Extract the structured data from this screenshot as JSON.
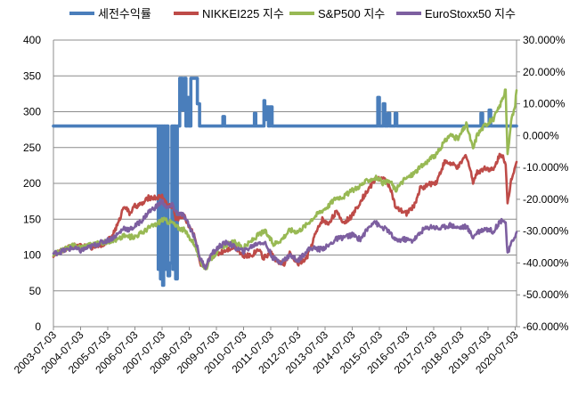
{
  "chart_data": {
    "type": "line",
    "title": "",
    "xlabel": "",
    "ylabel": "",
    "y2label": "",
    "x_categories": [
      "2003-07-03",
      "2004-07-03",
      "2005-07-03",
      "2006-07-03",
      "2007-07-03",
      "2008-07-03",
      "2009-07-03",
      "2010-07-03",
      "2011-07-03",
      "2012-07-03",
      "2013-07-03",
      "2014-07-03",
      "2015-07-03",
      "2016-07-03",
      "2017-07-03",
      "2018-07-03",
      "2019-07-03",
      "2020-07-03"
    ],
    "x_range": [
      2003.5,
      2020.55
    ],
    "ylim_left": [
      0,
      400
    ],
    "yticks_left": [
      "0",
      "50",
      "100",
      "150",
      "200",
      "250",
      "300",
      "350",
      "400"
    ],
    "ylim_right": [
      -0.6,
      0.3
    ],
    "yticks_right": [
      "-60.000%",
      "-50.000%",
      "-40.000%",
      "-30.000%",
      "-20.000%",
      "-10.000%",
      "0.000%",
      "10.000%",
      "20.000%",
      "30.000%"
    ],
    "grid": "horizontal",
    "legend_position": "top",
    "series": [
      {
        "name": "세전수익률",
        "axis": "right",
        "color": "#4a7ebb",
        "step": true,
        "points": [
          [
            2003.5,
            0.03
          ],
          [
            2007.35,
            0.03
          ],
          [
            2007.36,
            -0.42
          ],
          [
            2007.4,
            0.03
          ],
          [
            2007.44,
            -0.45
          ],
          [
            2007.48,
            0.03
          ],
          [
            2007.52,
            -0.47
          ],
          [
            2007.56,
            0.03
          ],
          [
            2007.62,
            -0.42
          ],
          [
            2007.66,
            0.03
          ],
          [
            2007.72,
            -0.44
          ],
          [
            2007.78,
            -0.4
          ],
          [
            2007.86,
            0.03
          ],
          [
            2007.9,
            -0.42
          ],
          [
            2007.94,
            0.03
          ],
          [
            2008.0,
            -0.45
          ],
          [
            2008.06,
            0.03
          ],
          [
            2008.15,
            0.18
          ],
          [
            2008.25,
            0.08
          ],
          [
            2008.32,
            0.18
          ],
          [
            2008.38,
            0.03
          ],
          [
            2008.42,
            0.12
          ],
          [
            2008.48,
            0.03
          ],
          [
            2008.56,
            0.18
          ],
          [
            2008.72,
            0.18
          ],
          [
            2008.8,
            0.1
          ],
          [
            2008.88,
            0.03
          ],
          [
            2009.7,
            0.03
          ],
          [
            2009.74,
            0.06
          ],
          [
            2009.8,
            0.03
          ],
          [
            2010.85,
            0.03
          ],
          [
            2010.9,
            0.07
          ],
          [
            2010.95,
            0.03
          ],
          [
            2011.2,
            0.03
          ],
          [
            2011.25,
            0.11
          ],
          [
            2011.28,
            0.05
          ],
          [
            2011.32,
            0.09
          ],
          [
            2011.42,
            0.03
          ],
          [
            2011.47,
            0.09
          ],
          [
            2011.55,
            0.03
          ],
          [
            2015.4,
            0.03
          ],
          [
            2015.44,
            0.12
          ],
          [
            2015.5,
            0.03
          ],
          [
            2015.6,
            0.03
          ],
          [
            2015.64,
            0.1
          ],
          [
            2015.7,
            0.03
          ],
          [
            2015.78,
            0.03
          ],
          [
            2015.82,
            0.07
          ],
          [
            2015.88,
            0.03
          ],
          [
            2016.05,
            0.03
          ],
          [
            2016.08,
            0.07
          ],
          [
            2016.14,
            0.03
          ],
          [
            2019.2,
            0.03
          ],
          [
            2019.24,
            0.07
          ],
          [
            2019.3,
            0.03
          ],
          [
            2019.5,
            0.03
          ],
          [
            2019.54,
            0.08
          ],
          [
            2019.6,
            0.03
          ],
          [
            2020.55,
            0.03
          ]
        ]
      },
      {
        "name": "NIKKEI225 지수",
        "axis": "left",
        "color": "#be4b48",
        "step": false,
        "points": [
          [
            2003.5,
            100
          ],
          [
            2003.9,
            107
          ],
          [
            2004.2,
            113
          ],
          [
            2004.5,
            112
          ],
          [
            2004.9,
            111
          ],
          [
            2005.3,
            115
          ],
          [
            2005.6,
            123
          ],
          [
            2005.9,
            145
          ],
          [
            2006.1,
            170
          ],
          [
            2006.3,
            158
          ],
          [
            2006.5,
            168
          ],
          [
            2006.8,
            172
          ],
          [
            2007.0,
            180
          ],
          [
            2007.3,
            180
          ],
          [
            2007.5,
            182
          ],
          [
            2007.7,
            170
          ],
          [
            2007.9,
            168
          ],
          [
            2008.0,
            150
          ],
          [
            2008.3,
            155
          ],
          [
            2008.5,
            140
          ],
          [
            2008.7,
            128
          ],
          [
            2008.9,
            88
          ],
          [
            2009.1,
            80
          ],
          [
            2009.3,
            98
          ],
          [
            2009.6,
            103
          ],
          [
            2009.9,
            108
          ],
          [
            2010.2,
            112
          ],
          [
            2010.5,
            98
          ],
          [
            2010.8,
            100
          ],
          [
            2011.1,
            110
          ],
          [
            2011.2,
            95
          ],
          [
            2011.5,
            103
          ],
          [
            2011.8,
            88
          ],
          [
            2012.0,
            88
          ],
          [
            2012.2,
            102
          ],
          [
            2012.5,
            88
          ],
          [
            2012.8,
            94
          ],
          [
            2012.95,
            108
          ],
          [
            2013.1,
            125
          ],
          [
            2013.4,
            150
          ],
          [
            2013.6,
            143
          ],
          [
            2013.9,
            160
          ],
          [
            2014.2,
            145
          ],
          [
            2014.5,
            155
          ],
          [
            2014.8,
            175
          ],
          [
            2015.1,
            192
          ],
          [
            2015.4,
            208
          ],
          [
            2015.7,
            205
          ],
          [
            2015.9,
            195
          ],
          [
            2016.1,
            165
          ],
          [
            2016.5,
            158
          ],
          [
            2016.8,
            170
          ],
          [
            2017.0,
            193
          ],
          [
            2017.3,
            198
          ],
          [
            2017.6,
            202
          ],
          [
            2017.9,
            230
          ],
          [
            2018.1,
            228
          ],
          [
            2018.4,
            222
          ],
          [
            2018.7,
            240
          ],
          [
            2018.95,
            203
          ],
          [
            2019.1,
            215
          ],
          [
            2019.4,
            222
          ],
          [
            2019.7,
            218
          ],
          [
            2019.9,
            238
          ],
          [
            2020.05,
            240
          ],
          [
            2020.15,
            225
          ],
          [
            2020.22,
            170
          ],
          [
            2020.35,
            205
          ],
          [
            2020.5,
            225
          ],
          [
            2020.55,
            230
          ]
        ]
      },
      {
        "name": "S&P500 지수",
        "axis": "left",
        "color": "#98b954",
        "step": false,
        "points": [
          [
            2003.5,
            100
          ],
          [
            2003.9,
            108
          ],
          [
            2004.2,
            113
          ],
          [
            2004.5,
            111
          ],
          [
            2004.9,
            115
          ],
          [
            2005.3,
            117
          ],
          [
            2005.6,
            120
          ],
          [
            2005.9,
            122
          ],
          [
            2006.1,
            127
          ],
          [
            2006.3,
            125
          ],
          [
            2006.5,
            126
          ],
          [
            2006.8,
            132
          ],
          [
            2007.0,
            138
          ],
          [
            2007.3,
            143
          ],
          [
            2007.5,
            150
          ],
          [
            2007.7,
            147
          ],
          [
            2007.9,
            145
          ],
          [
            2008.0,
            140
          ],
          [
            2008.3,
            135
          ],
          [
            2008.5,
            125
          ],
          [
            2008.7,
            115
          ],
          [
            2008.9,
            92
          ],
          [
            2009.1,
            80
          ],
          [
            2009.3,
            95
          ],
          [
            2009.6,
            108
          ],
          [
            2009.9,
            115
          ],
          [
            2010.2,
            118
          ],
          [
            2010.5,
            110
          ],
          [
            2010.8,
            120
          ],
          [
            2011.1,
            130
          ],
          [
            2011.3,
            133
          ],
          [
            2011.6,
            115
          ],
          [
            2011.9,
            122
          ],
          [
            2012.2,
            135
          ],
          [
            2012.5,
            133
          ],
          [
            2012.8,
            142
          ],
          [
            2013.0,
            150
          ],
          [
            2013.3,
            160
          ],
          [
            2013.6,
            168
          ],
          [
            2013.9,
            180
          ],
          [
            2014.2,
            182
          ],
          [
            2014.5,
            190
          ],
          [
            2014.8,
            197
          ],
          [
            2015.1,
            205
          ],
          [
            2015.4,
            208
          ],
          [
            2015.65,
            200
          ],
          [
            2015.9,
            203
          ],
          [
            2016.1,
            190
          ],
          [
            2016.4,
            205
          ],
          [
            2016.7,
            212
          ],
          [
            2017.0,
            222
          ],
          [
            2017.3,
            232
          ],
          [
            2017.6,
            240
          ],
          [
            2017.9,
            258
          ],
          [
            2018.1,
            268
          ],
          [
            2018.4,
            262
          ],
          [
            2018.7,
            283
          ],
          [
            2018.95,
            248
          ],
          [
            2019.1,
            268
          ],
          [
            2019.4,
            282
          ],
          [
            2019.7,
            290
          ],
          [
            2019.9,
            305
          ],
          [
            2020.05,
            320
          ],
          [
            2020.15,
            330
          ],
          [
            2020.22,
            238
          ],
          [
            2020.35,
            285
          ],
          [
            2020.5,
            310
          ],
          [
            2020.55,
            330
          ]
        ]
      },
      {
        "name": "EuroStoxx50 지수",
        "axis": "left",
        "color": "#7d5fa0",
        "step": false,
        "points": [
          [
            2003.5,
            102
          ],
          [
            2003.9,
            106
          ],
          [
            2004.2,
            110
          ],
          [
            2004.5,
            106
          ],
          [
            2004.9,
            112
          ],
          [
            2005.3,
            118
          ],
          [
            2005.6,
            122
          ],
          [
            2005.9,
            130
          ],
          [
            2006.1,
            138
          ],
          [
            2006.3,
            135
          ],
          [
            2006.5,
            140
          ],
          [
            2006.8,
            150
          ],
          [
            2007.0,
            160
          ],
          [
            2007.3,
            168
          ],
          [
            2007.5,
            175
          ],
          [
            2007.7,
            165
          ],
          [
            2007.9,
            170
          ],
          [
            2008.0,
            160
          ],
          [
            2008.3,
            155
          ],
          [
            2008.5,
            140
          ],
          [
            2008.7,
            125
          ],
          [
            2008.9,
            95
          ],
          [
            2009.1,
            83
          ],
          [
            2009.3,
            100
          ],
          [
            2009.6,
            112
          ],
          [
            2009.9,
            118
          ],
          [
            2010.2,
            110
          ],
          [
            2010.5,
            105
          ],
          [
            2010.8,
            112
          ],
          [
            2011.1,
            118
          ],
          [
            2011.3,
            116
          ],
          [
            2011.6,
            95
          ],
          [
            2011.9,
            90
          ],
          [
            2012.2,
            100
          ],
          [
            2012.5,
            92
          ],
          [
            2012.8,
            105
          ],
          [
            2013.0,
            110
          ],
          [
            2013.3,
            108
          ],
          [
            2013.6,
            112
          ],
          [
            2013.9,
            122
          ],
          [
            2014.2,
            125
          ],
          [
            2014.5,
            128
          ],
          [
            2014.8,
            122
          ],
          [
            2015.1,
            138
          ],
          [
            2015.3,
            148
          ],
          [
            2015.5,
            140
          ],
          [
            2015.8,
            135
          ],
          [
            2016.1,
            120
          ],
          [
            2016.4,
            122
          ],
          [
            2016.7,
            120
          ],
          [
            2016.9,
            126
          ],
          [
            2017.1,
            135
          ],
          [
            2017.4,
            140
          ],
          [
            2017.7,
            137
          ],
          [
            2017.95,
            140
          ],
          [
            2018.1,
            142
          ],
          [
            2018.4,
            138
          ],
          [
            2018.7,
            140
          ],
          [
            2018.95,
            125
          ],
          [
            2019.1,
            132
          ],
          [
            2019.4,
            137
          ],
          [
            2019.7,
            133
          ],
          [
            2019.9,
            145
          ],
          [
            2020.05,
            150
          ],
          [
            2020.15,
            145
          ],
          [
            2020.22,
            100
          ],
          [
            2020.35,
            115
          ],
          [
            2020.5,
            128
          ],
          [
            2020.55,
            132
          ]
        ]
      }
    ]
  }
}
